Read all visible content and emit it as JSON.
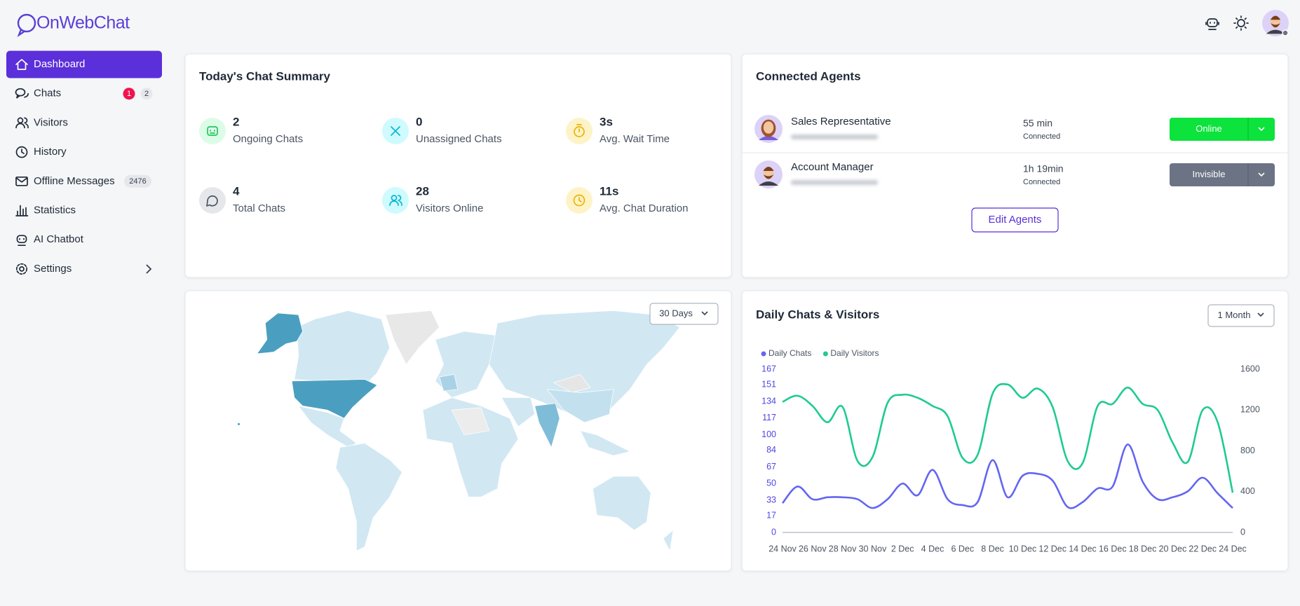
{
  "brand": "OnWebChat",
  "nav": [
    {
      "label": "Dashboard"
    },
    {
      "label": "Chats",
      "badges": [
        1,
        2
      ]
    },
    {
      "label": "Visitors"
    },
    {
      "label": "History"
    },
    {
      "label": "Offline Messages",
      "badges": [
        2476
      ]
    },
    {
      "label": "Statistics"
    },
    {
      "label": "AI Chatbot"
    },
    {
      "label": "Settings"
    }
  ],
  "summary": {
    "title": "Today's Chat Summary",
    "stats": [
      {
        "value": 2,
        "label": "Ongoing Chats"
      },
      {
        "value": 0,
        "label": "Unassigned Chats"
      },
      {
        "value": "3s",
        "label": "Avg. Wait Time"
      },
      {
        "value": 4,
        "label": "Total Chats"
      },
      {
        "value": 28,
        "label": "Visitors Online"
      },
      {
        "value": "11s",
        "label": "Avg. Chat Duration"
      }
    ]
  },
  "agents": {
    "title": "Connected Agents",
    "rows": [
      {
        "name": "Sales Representative",
        "time": "55 min",
        "time_label": "Connected",
        "status": "Online"
      },
      {
        "name": "Account Manager",
        "time": "1h 19min",
        "time_label": "Connected",
        "status": "Invisible"
      }
    ],
    "edit_button": "Edit Agents"
  },
  "map": {
    "range_button": "30 Days"
  },
  "chart_data": {
    "type": "line",
    "title": "Daily Chats & Visitors",
    "range_button": "1 Month",
    "categories": [
      "24 Nov",
      null,
      "26 Nov",
      null,
      "28 Nov",
      null,
      "30 Nov",
      null,
      "2 Dec",
      null,
      "4 Dec",
      null,
      "6 Dec",
      null,
      "8 Dec",
      null,
      "10 Dec",
      null,
      "12 Dec",
      null,
      "14 Dec",
      null,
      "16 Dec",
      null,
      "18 Dec",
      null,
      "20 Dec",
      null,
      "22 Dec",
      null,
      "24 Dec"
    ],
    "series": [
      {
        "name": "Daily Chats",
        "color": "#6366f1",
        "values": [
          30,
          47,
          34,
          36,
          36,
          34,
          25,
          34,
          50,
          38,
          64,
          34,
          28,
          31,
          74,
          36,
          58,
          60,
          53,
          26,
          31,
          45,
          47,
          90,
          52,
          34,
          36,
          42,
          56,
          40,
          25
        ]
      },
      {
        "name": "Daily Visitors",
        "color": "#1fcb8f",
        "axis": "y2",
        "values": [
          1280,
          1340,
          1240,
          1080,
          1230,
          700,
          740,
          1270,
          1350,
          1320,
          1240,
          1140,
          730,
          760,
          1360,
          1450,
          1320,
          1410,
          1230,
          700,
          680,
          1240,
          1260,
          1420,
          1260,
          1200,
          880,
          690,
          1200,
          1080,
          390
        ]
      }
    ],
    "ylim": [
      0,
      167
    ],
    "yticks": [
      0,
      17,
      33,
      50,
      67,
      84,
      100,
      117,
      134,
      151,
      167
    ],
    "y2lim": [
      0,
      1600
    ],
    "y2ticks": [
      0,
      400,
      800,
      1200,
      1600
    ]
  }
}
